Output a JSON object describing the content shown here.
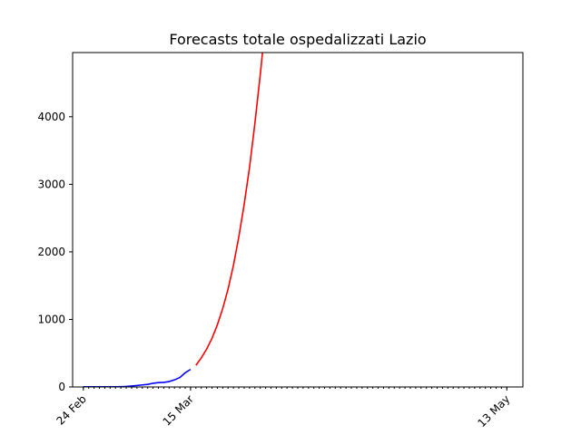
{
  "chart_data": {
    "type": "line",
    "title": "Forecasts totale ospedalizzati Lazio",
    "xlabel": "",
    "ylabel": "",
    "xlim": [
      "2020-02-22",
      "2020-05-16"
    ],
    "ylim": [
      0,
      4950
    ],
    "grid": false,
    "y_ticks": [
      0,
      1000,
      2000,
      3000,
      4000
    ],
    "y_tick_labels": [
      "0",
      "1000",
      "2000",
      "3000",
      "4000"
    ],
    "x_major_ticks": [
      {
        "date": "2020-02-24",
        "label": "24 Feb"
      },
      {
        "date": "2020-03-15",
        "label": "15 Mar"
      },
      {
        "date": "2020-05-13",
        "label": "13 May"
      }
    ],
    "x_minor_tick_range": [
      "2020-02-24",
      "2020-05-13"
    ],
    "series": [
      {
        "color": "#0000ff",
        "points": [
          [
            "2020-02-24",
            3
          ],
          [
            "2020-02-25",
            3
          ],
          [
            "2020-02-26",
            3
          ],
          [
            "2020-02-27",
            3
          ],
          [
            "2020-02-28",
            3
          ],
          [
            "2020-02-29",
            3
          ],
          [
            "2020-03-01",
            3
          ],
          [
            "2020-03-02",
            5
          ],
          [
            "2020-03-03",
            8
          ],
          [
            "2020-03-04",
            14
          ],
          [
            "2020-03-05",
            22
          ],
          [
            "2020-03-06",
            30
          ],
          [
            "2020-03-07",
            38
          ],
          [
            "2020-03-08",
            55
          ],
          [
            "2020-03-09",
            65
          ],
          [
            "2020-03-10",
            68
          ],
          [
            "2020-03-11",
            80
          ],
          [
            "2020-03-12",
            105
          ],
          [
            "2020-03-13",
            140
          ],
          [
            "2020-03-14",
            210
          ],
          [
            "2020-03-15",
            260
          ]
        ]
      },
      {
        "color": "#ff0000",
        "points": [
          [
            "2020-03-16",
            320
          ],
          [
            "2020-03-17",
            430
          ],
          [
            "2020-03-18",
            560
          ],
          [
            "2020-03-19",
            720
          ],
          [
            "2020-03-20",
            920
          ],
          [
            "2020-03-21",
            1160
          ],
          [
            "2020-03-22",
            1450
          ],
          [
            "2020-03-23",
            1800
          ],
          [
            "2020-03-24",
            2220
          ],
          [
            "2020-03-25",
            2700
          ],
          [
            "2020-03-26",
            3250
          ],
          [
            "2020-03-27",
            3900
          ],
          [
            "2020-03-28",
            4620
          ],
          [
            "2020-03-29",
            5400
          ]
        ]
      }
    ]
  }
}
